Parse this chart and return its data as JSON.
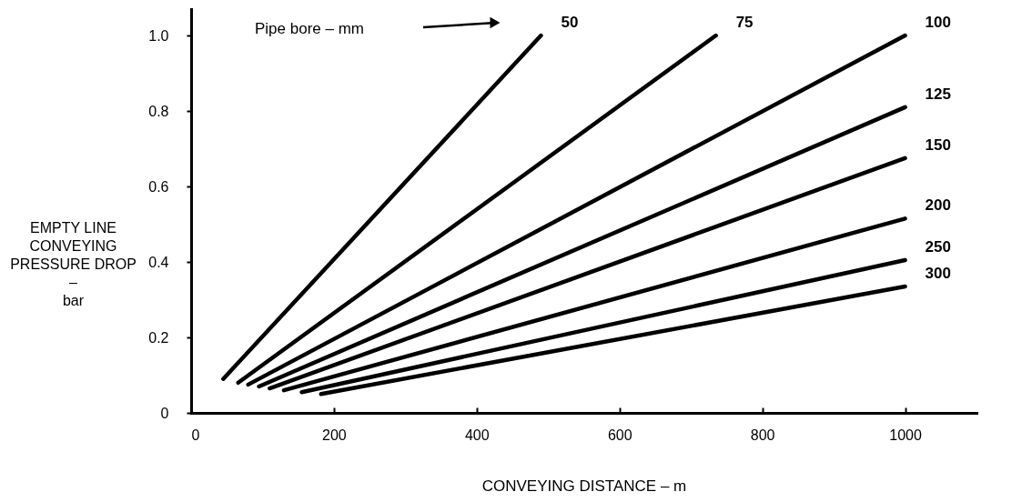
{
  "chart_data": {
    "type": "line",
    "xlabel": "CONVEYING DISTANCE – m",
    "ylabel": "EMPTY LINE\nCONVEYING\nPRESSURE DROP\n–\nbar",
    "xlim": [
      0,
      1100
    ],
    "xticks": [
      0,
      200,
      400,
      600,
      800,
      1000
    ],
    "ylim": [
      0,
      1.07
    ],
    "yticks": [
      0,
      0.2,
      0.4,
      0.6,
      0.8,
      {
        "value": 1,
        "label": "1.0"
      }
    ],
    "grid": false,
    "legend": false,
    "marker": "none",
    "line_style": "solid",
    "annotations": [
      "Pipe bore – mm"
    ],
    "series": [
      {
        "name": "50",
        "color": "#000000",
        "x": [
          45,
          490
        ],
        "values": [
          0.09,
          1.0
        ]
      },
      {
        "name": "75",
        "color": "#000000",
        "x": [
          66,
          735
        ],
        "values": [
          0.08,
          1.0
        ]
      },
      {
        "name": "100",
        "color": "#000000",
        "x": [
          80,
          1000
        ],
        "values": [
          0.075,
          1.0
        ]
      },
      {
        "name": "125",
        "color": "#000000",
        "x": [
          95,
          1000
        ],
        "values": [
          0.07,
          0.81
        ]
      },
      {
        "name": "150",
        "color": "#000000",
        "x": [
          110,
          1000
        ],
        "values": [
          0.065,
          0.675
        ]
      },
      {
        "name": "200",
        "color": "#000000",
        "x": [
          130,
          1000
        ],
        "values": [
          0.06,
          0.515
        ]
      },
      {
        "name": "250",
        "color": "#000000",
        "x": [
          155,
          1000
        ],
        "values": [
          0.055,
          0.405
        ]
      },
      {
        "name": "300",
        "color": "#000000",
        "x": [
          182,
          1000
        ],
        "values": [
          0.05,
          0.335
        ]
      }
    ]
  }
}
